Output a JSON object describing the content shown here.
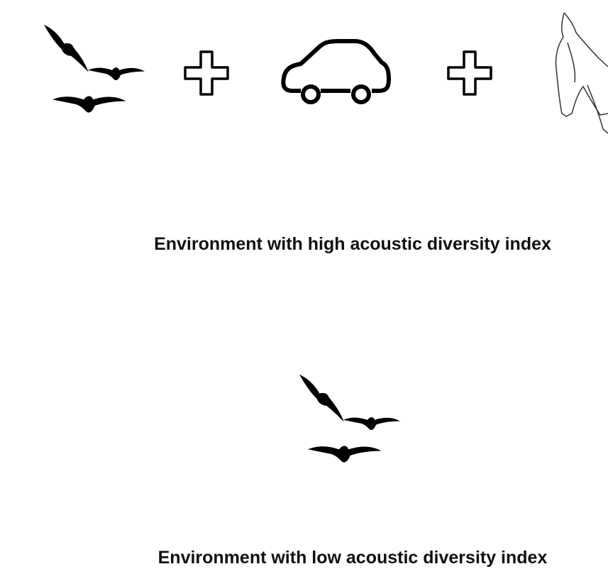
{
  "panels": [
    {
      "caption": "Environment with high acoustic diversity index"
    },
    {
      "caption": "Environment with low acoustic diversity index"
    }
  ]
}
